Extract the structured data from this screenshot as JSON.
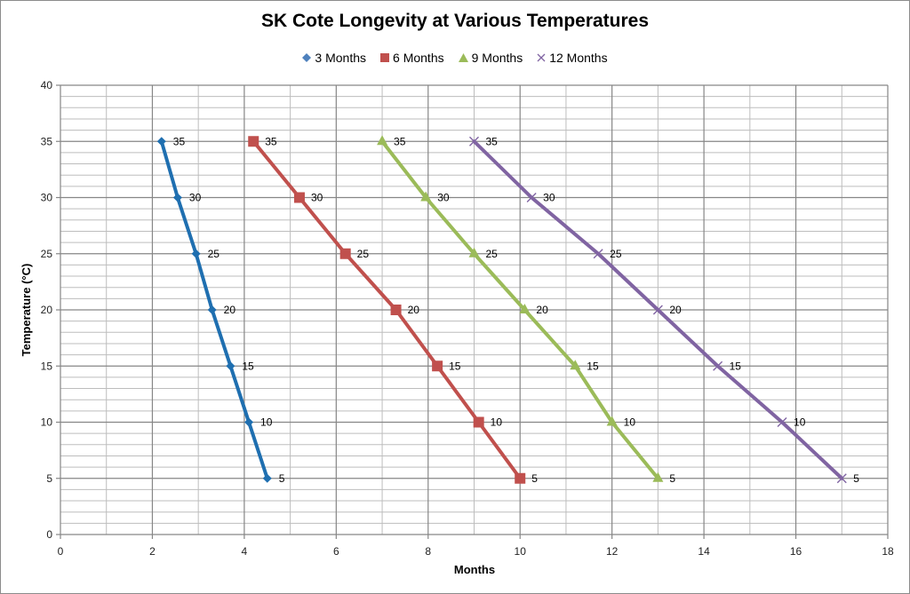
{
  "chart_data": {
    "type": "line",
    "title": "SK Cote Longevity at Various Temperatures",
    "xlabel": "Months",
    "ylabel": "Temperature (°C)",
    "xlim": [
      0,
      18
    ],
    "ylim": [
      0,
      40
    ],
    "x_ticks": [
      "0",
      "2",
      "4",
      "6",
      "8",
      "10",
      "12",
      "14",
      "16",
      "18"
    ],
    "y_ticks": [
      "0",
      "5",
      "10",
      "15",
      "20",
      "25",
      "30",
      "35",
      "40"
    ],
    "x_major_step": 2,
    "x_minor_step": 1,
    "y_major_step": 5,
    "y_minor_step": 1,
    "grid": true,
    "legend_position": "top",
    "series": [
      {
        "name": "3 Months",
        "color": "#1f6fb0",
        "marker": "diamond",
        "x": [
          4.5,
          4.1,
          3.7,
          3.3,
          2.95,
          2.55,
          2.2
        ],
        "y": [
          5,
          10,
          15,
          20,
          25,
          30,
          35
        ],
        "labels": [
          "5",
          "10",
          "15",
          "20",
          "25",
          "30",
          "35"
        ]
      },
      {
        "name": "6 Months",
        "color": "#c0504d",
        "marker": "square",
        "x": [
          10.0,
          9.1,
          8.2,
          7.3,
          6.2,
          5.2,
          4.2
        ],
        "y": [
          5,
          10,
          15,
          20,
          25,
          30,
          35
        ],
        "labels": [
          "5",
          "10",
          "15",
          "20",
          "25",
          "30",
          "35"
        ]
      },
      {
        "name": "9 Months",
        "color": "#9bbb59",
        "marker": "triangle",
        "x": [
          13.0,
          12.0,
          11.2,
          10.1,
          9.0,
          7.95,
          7.0
        ],
        "y": [
          5,
          10,
          15,
          20,
          25,
          30,
          35
        ],
        "labels": [
          "5",
          "10",
          "15",
          "20",
          "25",
          "30",
          "35"
        ]
      },
      {
        "name": "12 Months",
        "color": "#8064a2",
        "marker": "x",
        "x": [
          17.0,
          15.7,
          14.3,
          13.0,
          11.7,
          10.25,
          9.0
        ],
        "y": [
          5,
          10,
          15,
          20,
          25,
          30,
          35
        ],
        "labels": [
          "5",
          "10",
          "15",
          "20",
          "25",
          "30",
          "35"
        ]
      }
    ]
  }
}
